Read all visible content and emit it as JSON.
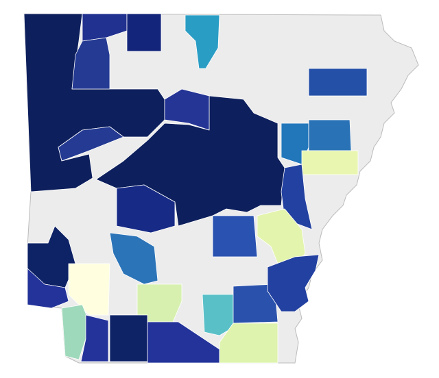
{
  "map": {
    "base_color": "#ececec",
    "regions": [
      {
        "color": "#0d1f5c"
      },
      {
        "color": "#0d1f5c"
      },
      {
        "color": "#21318f"
      },
      {
        "color": "#13257a"
      },
      {
        "color": "#243a93"
      },
      {
        "color": "#2a9dc5"
      },
      {
        "color": "#2550a8"
      },
      {
        "color": "#253595"
      },
      {
        "color": "#243a93"
      },
      {
        "color": "#2277bb"
      },
      {
        "color": "#2a72b6"
      },
      {
        "color": "#e8f6b0"
      },
      {
        "color": "#2341a0"
      },
      {
        "color": "#172a85"
      },
      {
        "color": "#2a52b0"
      },
      {
        "color": "#e3f4ad"
      },
      {
        "color": "#2c74b8"
      },
      {
        "color": "#0e2266"
      },
      {
        "color": "#23339a"
      },
      {
        "color": "#ffffe0"
      },
      {
        "color": "#d7f0b0"
      },
      {
        "color": "#5ac0c8"
      },
      {
        "color": "#2a52ac"
      },
      {
        "color": "#2341a0"
      },
      {
        "color": "#9fd9bb"
      },
      {
        "color": "#23339a"
      },
      {
        "color": "#0e2266"
      },
      {
        "color": "#23339a"
      },
      {
        "color": "#def3ad"
      }
    ]
  }
}
